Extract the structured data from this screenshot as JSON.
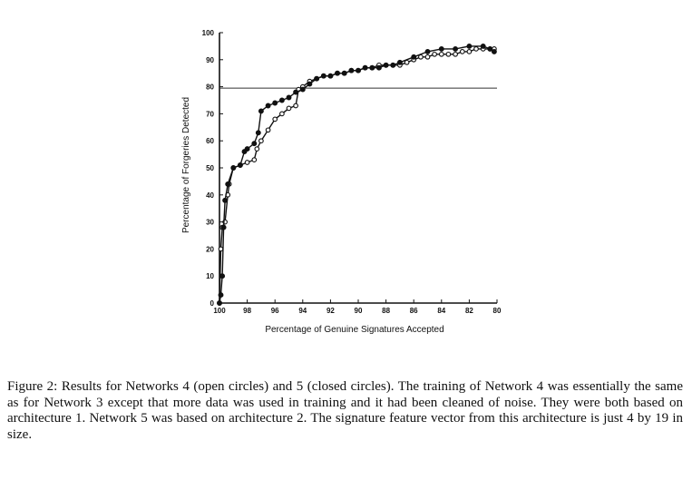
{
  "chart_data": {
    "type": "line",
    "xlabel": "Percentage of Genuine Signatures Accepted",
    "ylabel": "Percentage of Forgeries Detected",
    "xlim": [
      100,
      80
    ],
    "ylim": [
      0,
      100
    ],
    "x_ticks": [
      "100",
      "98",
      "96",
      "94",
      "92",
      "90",
      "88",
      "86",
      "84",
      "82",
      "80"
    ],
    "y_ticks": [
      "0",
      "10",
      "20",
      "30",
      "40",
      "50",
      "60",
      "70",
      "80",
      "90",
      "100"
    ],
    "reference_line_y": 79.5,
    "grid": false,
    "series": [
      {
        "marker": "open",
        "points": [
          [
            100,
            0
          ],
          [
            99.9,
            20
          ],
          [
            99.8,
            28
          ],
          [
            99.6,
            30
          ],
          [
            99.4,
            40
          ],
          [
            99.3,
            44
          ],
          [
            99.0,
            50
          ],
          [
            98.5,
            51
          ],
          [
            98.0,
            52
          ],
          [
            97.5,
            53
          ],
          [
            97.3,
            57
          ],
          [
            97.0,
            60
          ],
          [
            96.5,
            64
          ],
          [
            96.0,
            68
          ],
          [
            95.5,
            70
          ],
          [
            95.0,
            72
          ],
          [
            94.5,
            73
          ],
          [
            94.3,
            79
          ],
          [
            94.0,
            80
          ],
          [
            93.5,
            82
          ],
          [
            93.0,
            83
          ],
          [
            92.5,
            84
          ],
          [
            92.0,
            84
          ],
          [
            91.5,
            85
          ],
          [
            91.0,
            85
          ],
          [
            90.5,
            86
          ],
          [
            90.0,
            86
          ],
          [
            89.5,
            87
          ],
          [
            89.0,
            87
          ],
          [
            88.5,
            88
          ],
          [
            88.0,
            88
          ],
          [
            87.5,
            88
          ],
          [
            87.0,
            88
          ],
          [
            86.5,
            89
          ],
          [
            86.0,
            90
          ],
          [
            85.5,
            91
          ],
          [
            85.0,
            91
          ],
          [
            84.5,
            92
          ],
          [
            84.0,
            92
          ],
          [
            83.5,
            92
          ],
          [
            83.0,
            92
          ],
          [
            82.5,
            93
          ],
          [
            82.0,
            93
          ],
          [
            81.5,
            94
          ],
          [
            81.0,
            94
          ],
          [
            80.5,
            94
          ],
          [
            80.2,
            94
          ]
        ]
      },
      {
        "marker": "closed",
        "points": [
          [
            100,
            0
          ],
          [
            99.9,
            3
          ],
          [
            99.8,
            10
          ],
          [
            99.7,
            28
          ],
          [
            99.6,
            38
          ],
          [
            99.4,
            44
          ],
          [
            99.0,
            50
          ],
          [
            98.5,
            51
          ],
          [
            98.2,
            56
          ],
          [
            98.0,
            57
          ],
          [
            97.5,
            59
          ],
          [
            97.2,
            63
          ],
          [
            97.0,
            71
          ],
          [
            96.5,
            73
          ],
          [
            96.0,
            74
          ],
          [
            95.5,
            75
          ],
          [
            95.0,
            76
          ],
          [
            94.5,
            78
          ],
          [
            94.0,
            79
          ],
          [
            93.5,
            81
          ],
          [
            93.0,
            83
          ],
          [
            92.5,
            84
          ],
          [
            92.0,
            84
          ],
          [
            91.5,
            85
          ],
          [
            91.0,
            85
          ],
          [
            90.5,
            86
          ],
          [
            90.0,
            86
          ],
          [
            89.5,
            87
          ],
          [
            89.0,
            87
          ],
          [
            88.5,
            87
          ],
          [
            88.0,
            88
          ],
          [
            87.5,
            88
          ],
          [
            87.0,
            89
          ],
          [
            86.0,
            91
          ],
          [
            85.0,
            93
          ],
          [
            84.0,
            94
          ],
          [
            83.0,
            94
          ],
          [
            82.0,
            95
          ],
          [
            81.0,
            95
          ],
          [
            80.5,
            94
          ],
          [
            80.2,
            93
          ]
        ]
      }
    ]
  },
  "caption": "Figure 2: Results for Networks 4 (open circles) and 5 (closed circles). The training of Network 4 was essentially the same as for Network 3 except that more data was used in training and it had been cleaned of noise. They were both based on architecture 1. Network 5 was based on architecture 2. The signature feature vector from this architecture is just 4 by 19 in size."
}
